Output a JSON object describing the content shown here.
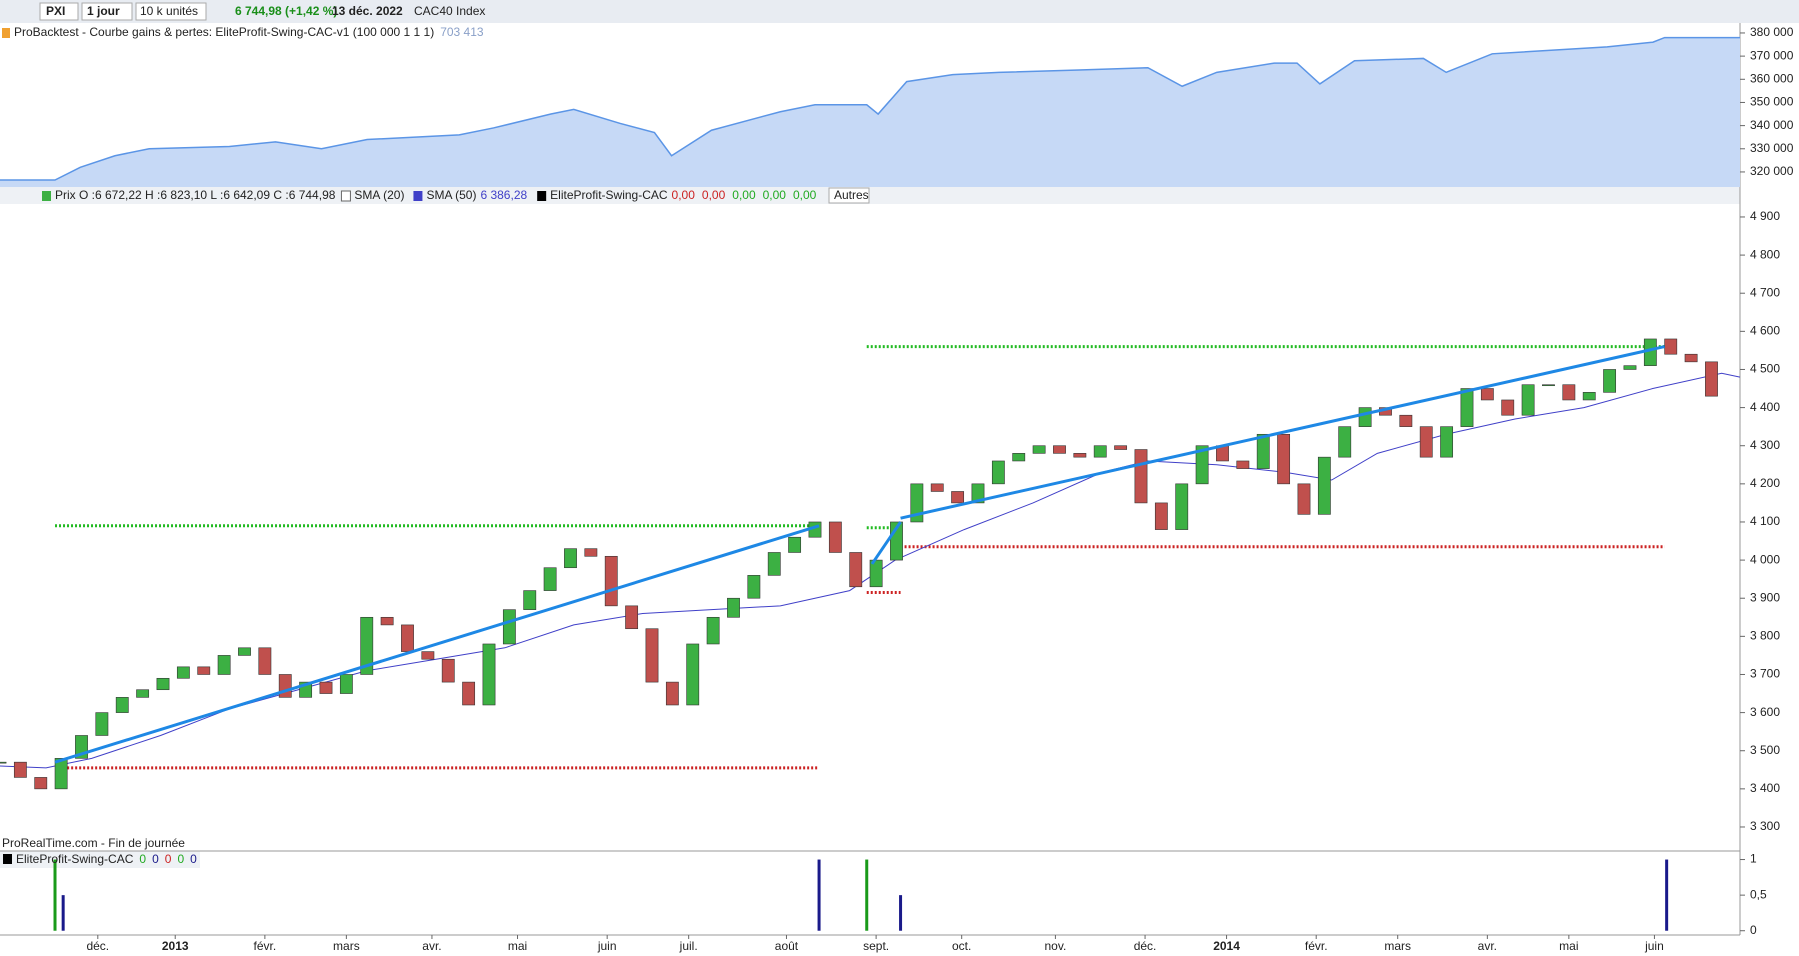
{
  "toolbar": {
    "symbol": "PXI",
    "period": "1 jour",
    "units": "10 k unités",
    "last": "6 744,98 (+1,42 %)",
    "date": "13 déc. 2022",
    "instrument": "CAC40 Index"
  },
  "chart_data": [
    {
      "type": "area",
      "legend": "ProBacktest - Courbe gains & pertes: EliteProfit-Swing-CAC-v1 (100 000 1 1 1)",
      "legend_value": "703 413",
      "color": "#5b95e6",
      "fill": "#c6d9f6",
      "x": [
        0,
        13.5,
        19.7,
        28.2,
        36.6,
        56.3,
        67.6,
        78.9,
        90.1,
        112.7,
        121.1,
        135.2,
        140.8,
        152.1,
        160.6,
        164.8,
        174.6,
        191.5,
        200,
        212.7,
        215.5,
        222.5,
        233.8,
        245.1,
        264.8,
        281.7,
        290.1,
        298.6,
        312.7,
        318.3,
        323.9,
        332.4,
        349.3,
        354.9,
        366.2,
        394.4,
        405.6,
        408.5,
        427
      ],
      "values": [
        316500,
        316500,
        322000,
        327000,
        330000,
        331000,
        333000,
        330000,
        334000,
        336000,
        339000,
        345000,
        347000,
        341000,
        337000,
        327000,
        338000,
        346000,
        349000,
        349000,
        345000,
        359000,
        362000,
        363000,
        364000,
        365000,
        357000,
        363000,
        367000,
        367000,
        358000,
        368000,
        369000,
        363000,
        371000,
        374000,
        376000,
        378000,
        378000
      ],
      "xlim": [
        0,
        427
      ],
      "ylim": [
        313500,
        384300
      ],
      "yticks": [
        {
          "value": 320000,
          "label": "320 000"
        },
        {
          "value": 330000,
          "label": "330 000"
        },
        {
          "value": 340000,
          "label": "340 000"
        },
        {
          "value": 350000,
          "label": "350 000"
        },
        {
          "value": 360000,
          "label": "360 000"
        },
        {
          "value": 370000,
          "label": "370 000"
        },
        {
          "value": 380000,
          "label": "380 000"
        }
      ]
    },
    {
      "type": "candlestick",
      "legend": "Prix O :6 672,22 H :6 823,10 L :6 642,09 C :6 744,98",
      "up_color": "#3cb043",
      "down_color": "#c0504d",
      "x_step": 5,
      "values": [
        3470,
        3430,
        3400,
        3480,
        3540,
        3600,
        3640,
        3660,
        3690,
        3720,
        3700,
        3750,
        3770,
        3700,
        3640,
        3680,
        3650,
        3700,
        3850,
        3830,
        3760,
        3740,
        3680,
        3620,
        3780,
        3870,
        3920,
        3980,
        4030,
        4010,
        3880,
        3820,
        3680,
        3620,
        3780,
        3850,
        3900,
        3960,
        4020,
        4060,
        4100,
        4020,
        3930,
        4000,
        4100,
        4200,
        4180,
        4150,
        4200,
        4260,
        4280,
        4300,
        4280,
        4270,
        4300,
        4290,
        4150,
        4080,
        4200,
        4300,
        4260,
        4240,
        4330,
        4200,
        4120,
        4270,
        4350,
        4400,
        4380,
        4350,
        4270,
        4350,
        4450,
        4420,
        4380,
        4460,
        4460,
        4420,
        4440,
        4500,
        4510,
        4580,
        4540,
        4520,
        4430
      ],
      "sma20": {
        "name": "SMA (20)",
        "color": "#ffffff"
      },
      "sma50": {
        "name": "SMA (50)",
        "value": "6 386,28",
        "color": "#4040c8",
        "x": [
          0,
          11.3,
          22.5,
          39.4,
          56.3,
          73.2,
          90.1,
          107,
          123.9,
          140.8,
          157.7,
          174.6,
          191.5,
          208.5,
          219.7,
          236.6,
          253.5,
          270.4,
          281.7,
          298.6,
          315.5,
          326.8,
          338,
          354.9,
          371.8,
          388.7,
          405.6,
          422.5,
          427
        ],
        "values": [
          3460,
          3455,
          3480,
          3540,
          3610,
          3660,
          3710,
          3740,
          3770,
          3830,
          3860,
          3870,
          3880,
          3920,
          4000,
          4080,
          4150,
          4230,
          4260,
          4250,
          4230,
          4210,
          4280,
          4330,
          4370,
          4400,
          4450,
          4490,
          4480
        ]
      },
      "indicator": {
        "name": "EliteProfit-Swing-CAC",
        "values": [
          "0,00",
          "0,00",
          "0,00",
          "0,00",
          "0,00"
        ]
      },
      "others": "Autres",
      "levels": [
        {
          "color": "#22bb22",
          "y": 4090,
          "x": [
            13.5,
            201
          ]
        },
        {
          "color": "#cc2222",
          "y": 3455,
          "x": [
            15.5,
            200.6
          ]
        },
        {
          "color": "#22bb22",
          "y": 4560,
          "x": [
            212.7,
            408.5
          ]
        },
        {
          "color": "#cc2222",
          "y": 4035,
          "x": [
            221,
            408.5
          ]
        },
        {
          "color": "#22bb22",
          "y": 4085,
          "x": [
            212.7,
            221
          ]
        },
        {
          "color": "#cc2222",
          "y": 3915,
          "x": [
            212.7,
            221
          ]
        }
      ],
      "trends": [
        {
          "x": [
            13.5,
            201
          ],
          "y": [
            3470,
            4090
          ]
        },
        {
          "x": [
            214,
            221
          ],
          "y": [
            3990,
            4100
          ]
        },
        {
          "x": [
            221,
            408.5
          ],
          "y": [
            4110,
            4560
          ]
        }
      ],
      "trend_color": "#1e88e5",
      "xlim": [
        0,
        427
      ],
      "ylim": [
        3237,
        4934
      ],
      "yticks": [
        {
          "value": 3300,
          "label": "3 300"
        },
        {
          "value": 3400,
          "label": "3 400"
        },
        {
          "value": 3500,
          "label": "3 500"
        },
        {
          "value": 3600,
          "label": "3 600"
        },
        {
          "value": 3700,
          "label": "3 700"
        },
        {
          "value": 3800,
          "label": "3 800"
        },
        {
          "value": 3900,
          "label": "3 900"
        },
        {
          "value": 4000,
          "label": "4 000"
        },
        {
          "value": 4100,
          "label": "4 100"
        },
        {
          "value": 4200,
          "label": "4 200"
        },
        {
          "value": 4300,
          "label": "4 300"
        },
        {
          "value": 4400,
          "label": "4 400"
        },
        {
          "value": 4500,
          "label": "4 500"
        },
        {
          "value": 4600,
          "label": "4 600"
        },
        {
          "value": 4700,
          "label": "4 700"
        },
        {
          "value": 4800,
          "label": "4 800"
        },
        {
          "value": 4900,
          "label": "4 900"
        }
      ],
      "footer": "ProRealTime.com - Fin de journée"
    },
    {
      "type": "bar",
      "legend": "EliteProfit-Swing-CAC",
      "legend_values": [
        "0",
        "0",
        "0",
        "0",
        "0"
      ],
      "x": [
        13.5,
        15.5,
        201,
        212.7,
        221,
        409
      ],
      "values": [
        1,
        0.5,
        1,
        1,
        0.5,
        1
      ],
      "colors": [
        "#1a9a1a",
        "#1a1a8a",
        "#1a1a8a",
        "#1a9a1a",
        "#1a1a8a",
        "#1a1a8a"
      ],
      "xlim": [
        0,
        427
      ],
      "ylim": [
        -0.06,
        1.12
      ],
      "yticks": [
        0,
        {
          "value": 0.5,
          "label": "0,5"
        },
        1
      ],
      "xticks": [
        {
          "value": 24,
          "label": "déc."
        },
        {
          "value": 43,
          "label": "2013"
        },
        {
          "value": 65,
          "label": "févr."
        },
        {
          "value": 85,
          "label": "mars"
        },
        {
          "value": 106,
          "label": "avr."
        },
        {
          "value": 127,
          "label": "mai"
        },
        {
          "value": 149,
          "label": "juin"
        },
        {
          "value": 169,
          "label": "juil."
        },
        {
          "value": 193,
          "label": "août"
        },
        {
          "value": 215,
          "label": "sept."
        },
        {
          "value": 236,
          "label": "oct."
        },
        {
          "value": 259,
          "label": "nov."
        },
        {
          "value": 281,
          "label": "déc."
        },
        {
          "value": 301,
          "label": "2014"
        },
        {
          "value": 323,
          "label": "févr."
        },
        {
          "value": 343,
          "label": "mars"
        },
        {
          "value": 365,
          "label": "avr."
        },
        {
          "value": 385,
          "label": "mai"
        },
        {
          "value": 406,
          "label": "juin"
        }
      ]
    }
  ]
}
